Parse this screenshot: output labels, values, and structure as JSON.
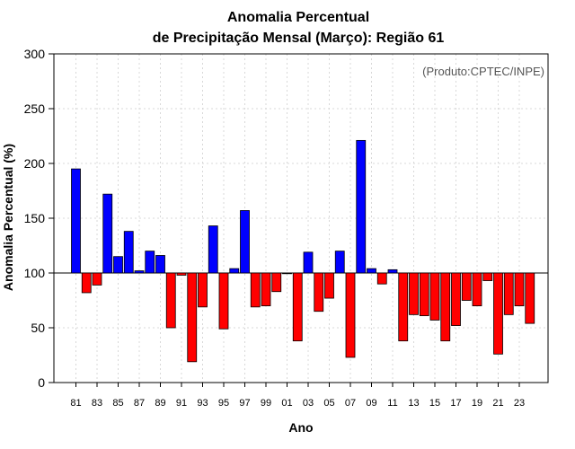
{
  "chart_data": {
    "type": "bar",
    "title": "Anomalia Percentual",
    "subtitle": "de Precipitação Mensal (Março): Região 61",
    "credit": "(Produto:CPTEC/INPE)",
    "xlabel": "Ano",
    "ylabel": "Anomalia Percentual (%)",
    "ylim": [
      0,
      300
    ],
    "yticks": [
      "0",
      "50",
      "100",
      "150",
      "200",
      "250",
      "300"
    ],
    "baseline": 100,
    "grid": true,
    "colors": {
      "above": "#0000ff",
      "below": "#ff0000"
    },
    "categories": [
      "81",
      "82",
      "83",
      "84",
      "85",
      "86",
      "87",
      "88",
      "89",
      "90",
      "91",
      "92",
      "93",
      "94",
      "95",
      "96",
      "97",
      "98",
      "99",
      "00",
      "01",
      "02",
      "03",
      "04",
      "05",
      "06",
      "07",
      "08",
      "09",
      "10",
      "11",
      "12",
      "13",
      "14",
      "15",
      "16",
      "17",
      "18",
      "19",
      "20",
      "21",
      "22",
      "23",
      "24"
    ],
    "xtick_labels": [
      "81",
      "83",
      "85",
      "87",
      "89",
      "91",
      "93",
      "95",
      "97",
      "99",
      "01",
      "03",
      "05",
      "07",
      "09",
      "11",
      "13",
      "15",
      "17",
      "19",
      "21",
      "23"
    ],
    "values": [
      195,
      82,
      89,
      172,
      115,
      138,
      102,
      120,
      116,
      50,
      98,
      19,
      69,
      143,
      49,
      104,
      157,
      69,
      70,
      83,
      100,
      38,
      119,
      65,
      77,
      120,
      23,
      221,
      104,
      90,
      103,
      38,
      62,
      61,
      57,
      38,
      52,
      75,
      70,
      93,
      26,
      62,
      70,
      54
    ]
  }
}
